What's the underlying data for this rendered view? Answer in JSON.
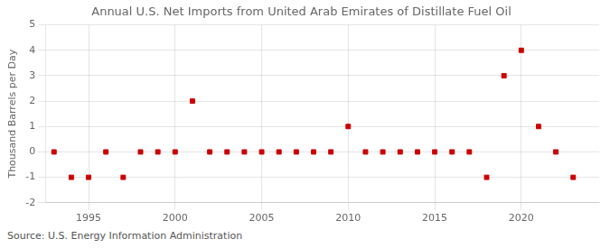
{
  "chart_data": {
    "type": "scatter",
    "title": "Annual U.S. Net Imports from United Arab Emirates of Distillate Fuel Oil",
    "ylabel": "Thousand Barrels per Day",
    "annotation": "Source: U.S. Energy Information Administration",
    "x": [
      1993,
      1994,
      1995,
      1996,
      1997,
      1998,
      1999,
      2000,
      2001,
      2002,
      2003,
      2004,
      2005,
      2006,
      2007,
      2008,
      2009,
      2010,
      2011,
      2012,
      2013,
      2014,
      2015,
      2016,
      2017,
      2018,
      2019,
      2020,
      2021,
      2022,
      2023
    ],
    "values": [
      0,
      -1,
      -1,
      0,
      -1,
      0,
      0,
      0,
      2,
      0,
      0,
      0,
      0,
      0,
      0,
      0,
      0,
      1,
      0,
      0,
      0,
      0,
      0,
      0,
      0,
      -1,
      3,
      4,
      1,
      0,
      -1
    ],
    "color": "#cc0000",
    "marker": "square",
    "xlim": [
      1992.5,
      2024.5
    ],
    "xticks": [
      1995,
      2000,
      2005,
      2010,
      2015,
      2020
    ],
    "ylim": [
      -2,
      5
    ],
    "yticks": [
      -2,
      -1,
      0,
      1,
      2,
      3,
      4,
      5
    ],
    "grid": true
  }
}
